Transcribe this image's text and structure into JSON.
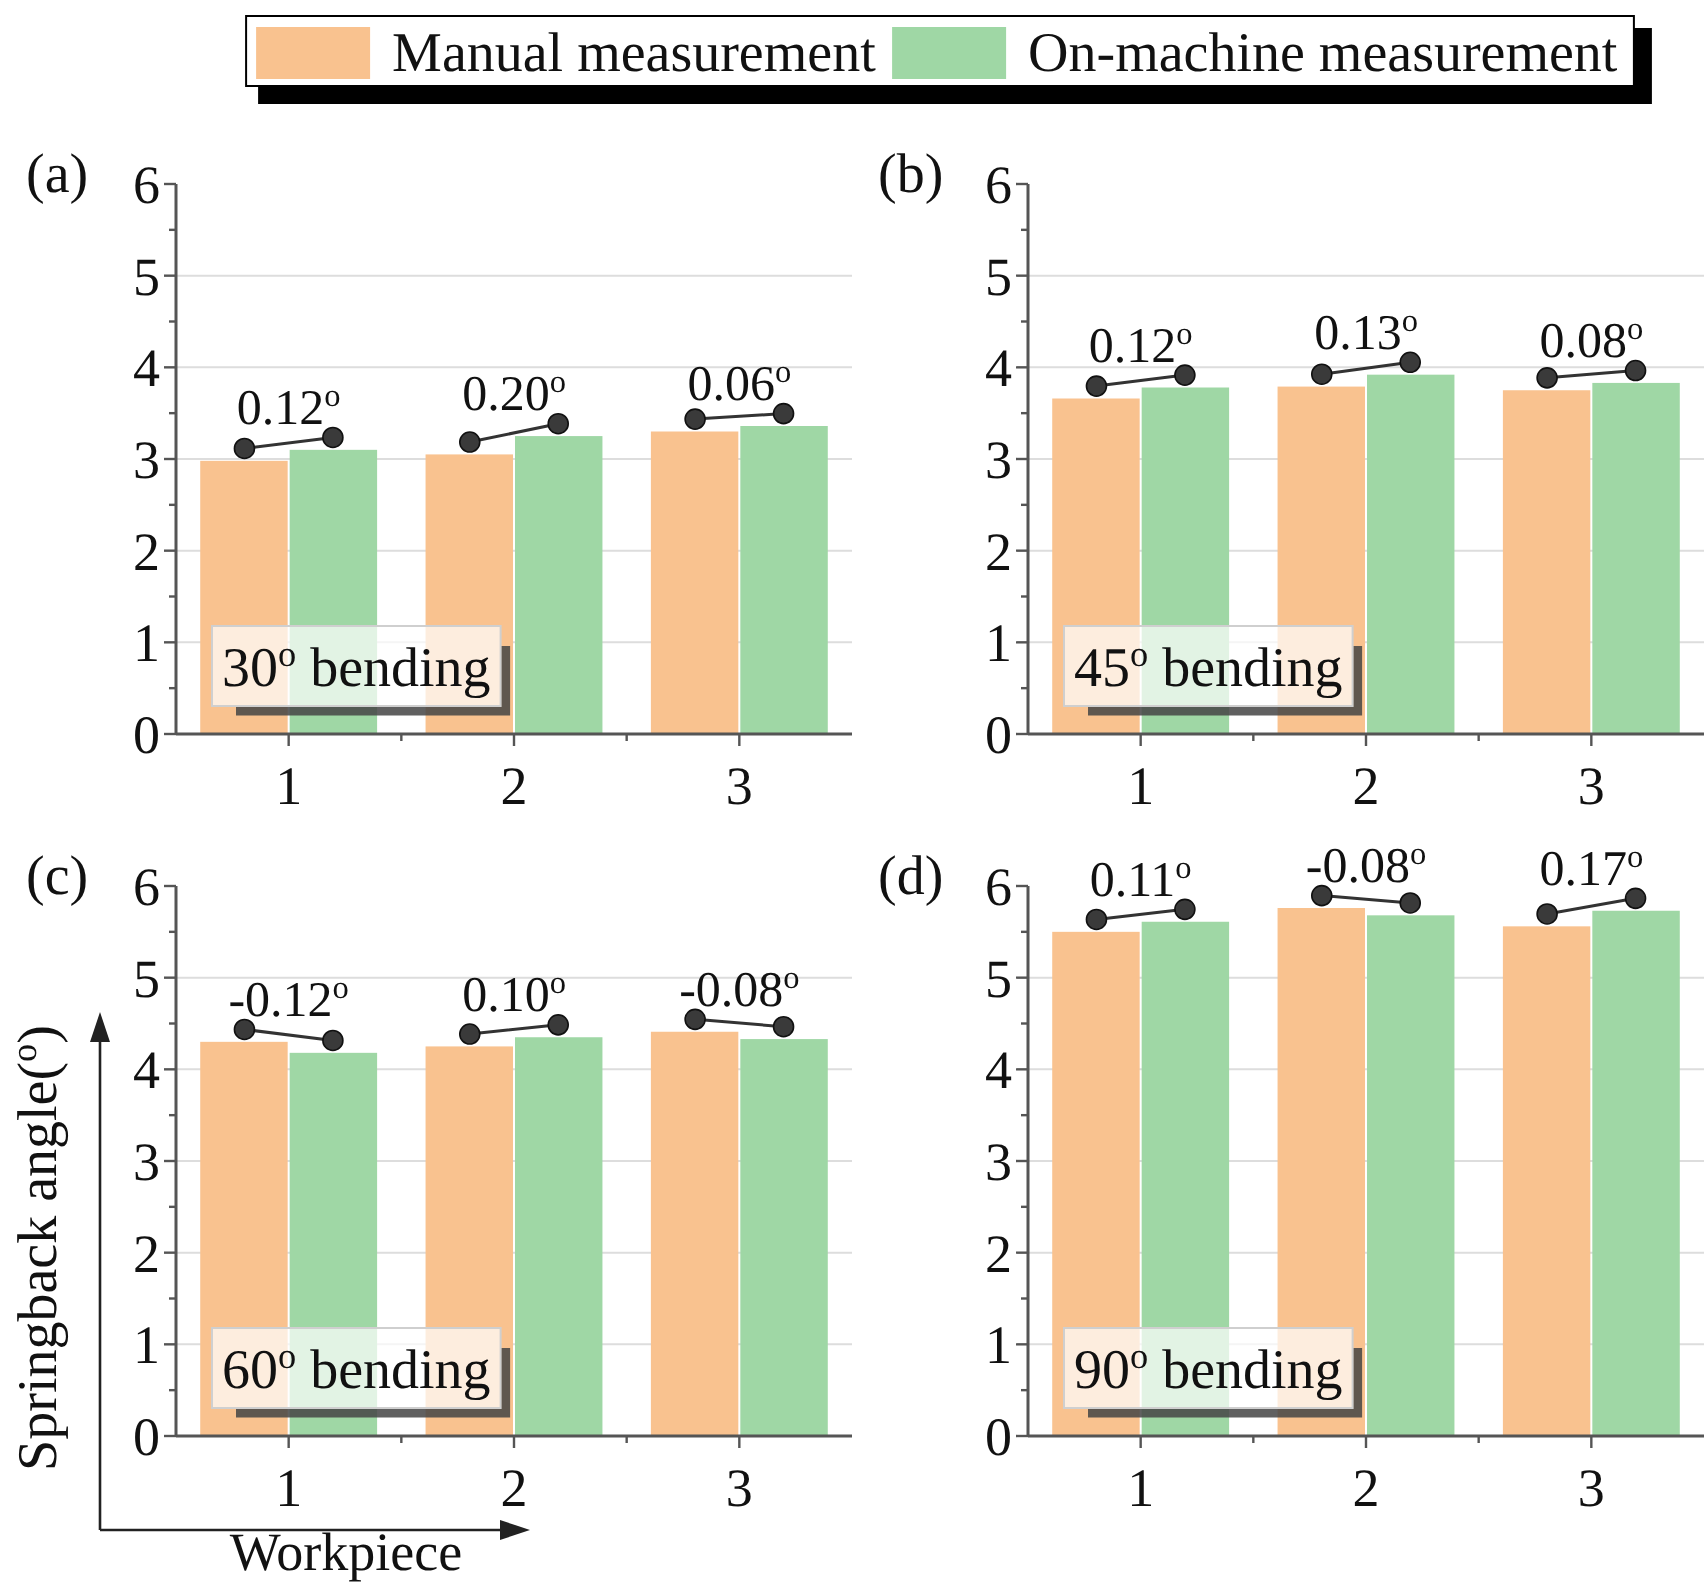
{
  "chart_data": [
    {
      "type": "bar",
      "title": "(a)",
      "subtitle": "30$^{o}$ bending",
      "categories": [
        "1",
        "2",
        "3"
      ],
      "series": [
        {
          "name": "Manual measurement",
          "color": "#f9c28f",
          "values": [
            2.98,
            3.05,
            3.3
          ]
        },
        {
          "name": "On-machine measurement",
          "color": "#9fd7a5",
          "values": [
            3.1,
            3.25,
            3.36
          ]
        }
      ],
      "ylim": [
        0,
        6
      ],
      "yticks": [
        0,
        {
          "value": 0.5,
          "label": null
        },
        1,
        {
          "value": 1.5,
          "label": null
        },
        2,
        {
          "value": 2.5,
          "label": null
        },
        3,
        {
          "value": 3.5,
          "label": null
        },
        4,
        {
          "value": 4.5,
          "label": null
        },
        5,
        {
          "value": 5.5,
          "label": null
        },
        6
      ],
      "grid": "y",
      "legend": "top",
      "marker": "circle",
      "line_style": "solid",
      "annotations": [
        {
          "text": "0.12$^{o}$",
          "x": "1",
          "y": 3.1
        },
        {
          "text": "0.20$^{o}$",
          "x": "2",
          "y": 3.25
        },
        {
          "text": "0.06$^{o}$",
          "x": "3",
          "y": 3.36
        }
      ]
    },
    {
      "type": "bar",
      "title": "(b)",
      "subtitle": "45$^{o}$ bending",
      "categories": [
        "1",
        "2",
        "3"
      ],
      "series": [
        {
          "color": "#f9c28f",
          "values": [
            3.66,
            3.79,
            3.75
          ]
        },
        {
          "color": "#9fd7a5",
          "values": [
            3.78,
            3.92,
            3.83
          ]
        }
      ],
      "ylim": [
        0,
        6
      ],
      "yticks": [
        0,
        {
          "value": 0.5,
          "label": null
        },
        1,
        {
          "value": 1.5,
          "label": null
        },
        2,
        {
          "value": 2.5,
          "label": null
        },
        3,
        {
          "value": 3.5,
          "label": null
        },
        4,
        {
          "value": 4.5,
          "label": null
        },
        5,
        {
          "value": 5.5,
          "label": null
        },
        6
      ],
      "grid": "y",
      "marker": "circle",
      "line_style": "solid",
      "annotations": [
        {
          "text": "0.12$^{o}$",
          "x": "1",
          "y": 3.78
        },
        {
          "text": "0.13$^{o}$",
          "x": "2",
          "y": 3.92
        },
        {
          "text": "0.08$^{o}$",
          "x": "3",
          "y": 3.83
        }
      ]
    },
    {
      "type": "bar",
      "title": "(c)",
      "subtitle": "60$^{o}$ bending",
      "xlabel": "Workpiece",
      "ylabel": "Springback angle($^{o}$)",
      "categories": [
        "1",
        "2",
        "3"
      ],
      "series": [
        {
          "color": "#f9c28f",
          "values": [
            4.3,
            4.25,
            4.41
          ]
        },
        {
          "color": "#9fd7a5",
          "values": [
            4.18,
            4.35,
            4.33
          ]
        }
      ],
      "ylim": [
        0,
        6
      ],
      "yticks": [
        0,
        {
          "value": 0.5,
          "label": null
        },
        1,
        {
          "value": 1.5,
          "label": null
        },
        2,
        {
          "value": 2.5,
          "label": null
        },
        3,
        {
          "value": 3.5,
          "label": null
        },
        4,
        {
          "value": 4.5,
          "label": null
        },
        5,
        {
          "value": 5.5,
          "label": null
        },
        6
      ],
      "grid": "y",
      "marker": "circle",
      "line_style": "solid",
      "annotations": [
        {
          "text": "-0.12$^{o}$",
          "x": "1",
          "y": 4.3
        },
        {
          "text": "0.10$^{o}$",
          "x": "2",
          "y": 4.35
        },
        {
          "text": "-0.08$^{o}$",
          "x": "3",
          "y": 4.41
        }
      ]
    },
    {
      "type": "bar",
      "title": "(d)",
      "subtitle": "90$^{o}$ bending",
      "categories": [
        "1",
        "2",
        "3"
      ],
      "series": [
        {
          "color": "#f9c28f",
          "values": [
            5.5,
            5.76,
            5.56
          ]
        },
        {
          "color": "#9fd7a5",
          "values": [
            5.61,
            5.68,
            5.73
          ]
        }
      ],
      "ylim": [
        0,
        6
      ],
      "yticks": [
        0,
        {
          "value": 0.5,
          "label": null
        },
        1,
        {
          "value": 1.5,
          "label": null
        },
        2,
        {
          "value": 2.5,
          "label": null
        },
        3,
        {
          "value": 3.5,
          "label": null
        },
        4,
        {
          "value": 4.5,
          "label": null
        },
        5,
        {
          "value": 5.5,
          "label": null
        },
        6
      ],
      "grid": "y",
      "marker": "circle",
      "line_style": "solid",
      "annotations": [
        {
          "text": "0.11$^{o}$",
          "x": "1",
          "y": 5.61
        },
        {
          "text": "-0.08$^{o}$",
          "x": "2",
          "y": 5.76
        },
        {
          "text": "0.17$^{o}$",
          "x": "3",
          "y": 5.73
        }
      ]
    }
  ]
}
